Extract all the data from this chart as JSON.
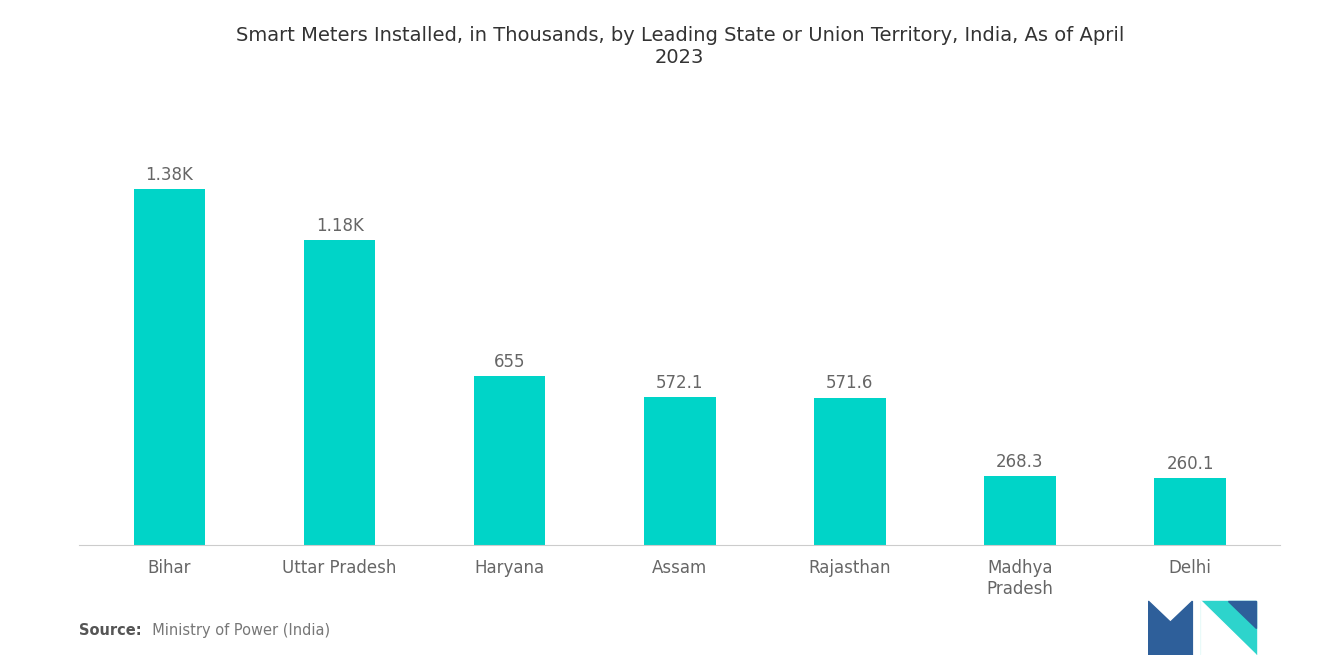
{
  "title": "Smart Meters Installed, in Thousands, by Leading State or Union Territory, India, As of April\n2023",
  "categories": [
    "Bihar",
    "Uttar Pradesh",
    "Haryana",
    "Assam",
    "Rajasthan",
    "Madhya\nPradesh",
    "Delhi"
  ],
  "values": [
    1380,
    1180,
    655,
    572.1,
    571.6,
    268.3,
    260.1
  ],
  "labels": [
    "1.38K",
    "1.18K",
    "655",
    "572.1",
    "571.6",
    "268.3",
    "260.1"
  ],
  "bar_color": "#00D4C8",
  "background_color": "#ffffff",
  "title_fontsize": 14,
  "label_fontsize": 12,
  "tick_fontsize": 12,
  "source_bold": "Source:",
  "source_normal": "  Ministry of Power (India)",
  "ylim": [
    0,
    1750
  ],
  "bar_width": 0.42
}
